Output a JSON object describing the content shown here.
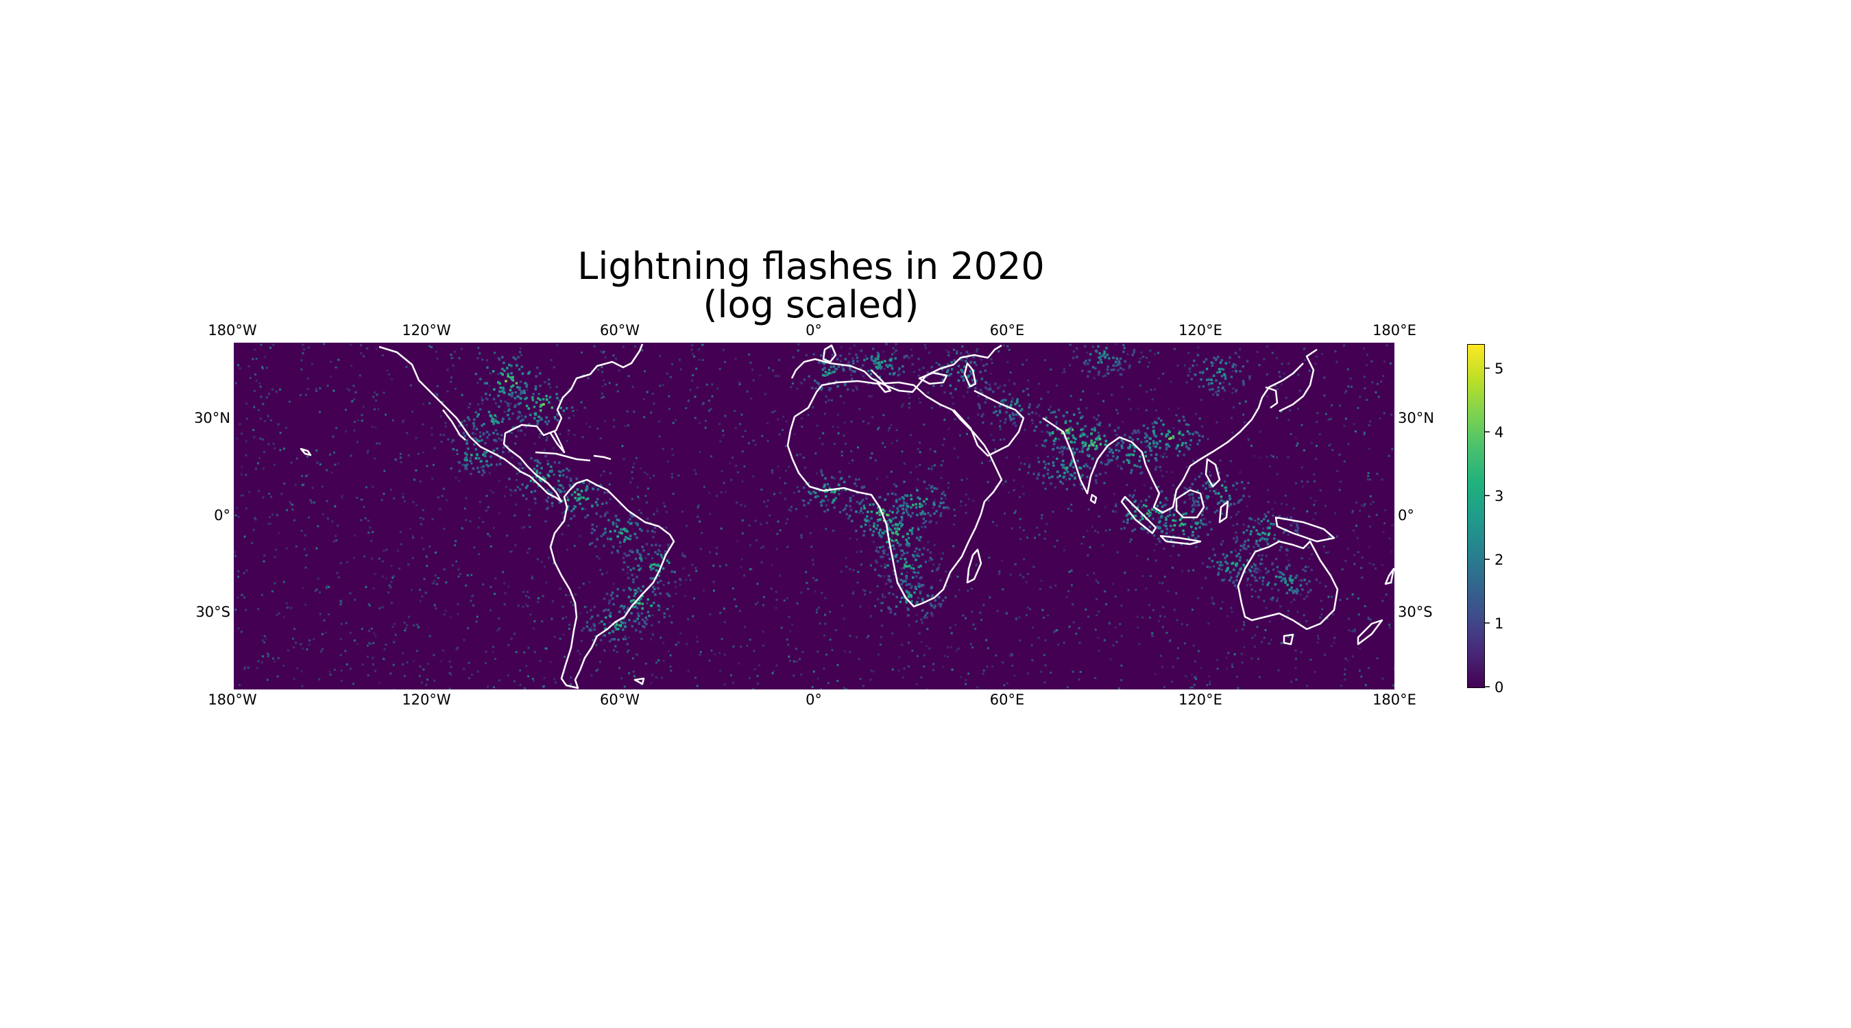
{
  "title": [
    "Lightning flashes in 2020",
    "(log scaled)"
  ],
  "chart_data": {
    "type": "heatmap",
    "title": "Lightning flashes in 2020\n(log scaled)",
    "projection": "plate carree",
    "lon_ticks": [
      "180°W",
      "120°W",
      "60°W",
      "0°",
      "60°E",
      "120°E",
      "180°E"
    ],
    "lat_ticks": [
      "30°N",
      "0°",
      "30°S"
    ],
    "lon_range": [
      -180,
      180
    ],
    "lat_range": [
      -54,
      54
    ],
    "colorbar": {
      "colormap": "viridis",
      "range": [
        0,
        5.4
      ],
      "ticks": [
        "0",
        "1",
        "2",
        "3",
        "4",
        "5"
      ]
    },
    "coastlines_color": "#ffffff",
    "hotspots": [
      {
        "lon": 20,
        "lat": 0,
        "value": 4.5
      },
      {
        "lon": 25,
        "lat": -5,
        "value": 4.2
      },
      {
        "lon": 5,
        "lat": 8,
        "value": 3.8
      },
      {
        "lon": 32,
        "lat": 5,
        "value": 3.8
      },
      {
        "lon": 28,
        "lat": -15,
        "value": 3.5
      },
      {
        "lon": 30,
        "lat": -25,
        "value": 3.2
      },
      {
        "lon": -95,
        "lat": 43,
        "value": 4.5
      },
      {
        "lon": -85,
        "lat": 35,
        "value": 4.2
      },
      {
        "lon": -100,
        "lat": 30,
        "value": 3.5
      },
      {
        "lon": -105,
        "lat": 20,
        "value": 3.5
      },
      {
        "lon": -85,
        "lat": 12,
        "value": 3.8
      },
      {
        "lon": -74,
        "lat": 6,
        "value": 3.8
      },
      {
        "lon": -60,
        "lat": -5,
        "value": 3.5
      },
      {
        "lon": -50,
        "lat": -15,
        "value": 3.5
      },
      {
        "lon": -55,
        "lat": -27,
        "value": 4.0
      },
      {
        "lon": -62,
        "lat": -33,
        "value": 3.5
      },
      {
        "lon": 78,
        "lat": 27,
        "value": 4.5
      },
      {
        "lon": 86,
        "lat": 23,
        "value": 4.2
      },
      {
        "lon": 78,
        "lat": 15,
        "value": 3.5
      },
      {
        "lon": 100,
        "lat": 20,
        "value": 3.8
      },
      {
        "lon": 110,
        "lat": 25,
        "value": 4.2
      },
      {
        "lon": 103,
        "lat": 2,
        "value": 4.0
      },
      {
        "lon": 113,
        "lat": -2,
        "value": 4.0
      },
      {
        "lon": 125,
        "lat": 8,
        "value": 3.5
      },
      {
        "lon": 140,
        "lat": -5,
        "value": 3.5
      },
      {
        "lon": 130,
        "lat": -15,
        "value": 3.2
      },
      {
        "lon": 145,
        "lat": -20,
        "value": 3.2
      },
      {
        "lon": 45,
        "lat": 45,
        "value": 3.2
      },
      {
        "lon": 20,
        "lat": 48,
        "value": 3.2
      },
      {
        "lon": 5,
        "lat": 45,
        "value": 3.0
      },
      {
        "lon": 125,
        "lat": 45,
        "value": 3.2
      },
      {
        "lon": 90,
        "lat": 50,
        "value": 2.8
      },
      {
        "lon": 60,
        "lat": 35,
        "value": 2.8
      }
    ]
  }
}
